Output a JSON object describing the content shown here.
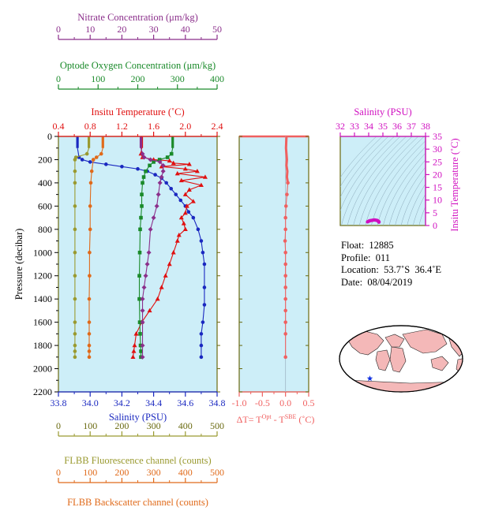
{
  "colors": {
    "nitrate": "#8b2f8b",
    "oxygen": "#1a8a2a",
    "temperature": "#e01010",
    "salinity": "#1a28c0",
    "fluorescence": "#9a9a30",
    "backscatter": "#e06a1a",
    "deltaT": "#f06060",
    "ts_axis": "#d010c0",
    "panel_bg": "#cdeef8",
    "axis_olive": "#6a6a10"
  },
  "info": {
    "float": "Float:  12885",
    "profile": "Profile:  011",
    "location": "Location:  53.7˚S  36.4˚E",
    "date": "Date:  08/04/2019"
  },
  "chart_data": [
    {
      "type": "line",
      "panel": "main",
      "ylabel": "Pressure (decibar)",
      "ylim": [
        2200,
        0
      ],
      "yticks": [
        "0",
        "200",
        "400",
        "600",
        "800",
        "1000",
        "1200",
        "1400",
        "1600",
        "1800",
        "2000",
        "2200"
      ],
      "axes": {
        "nitrate": {
          "label": "Nitrate Concentration (μm/kg)",
          "lim": [
            0,
            50
          ],
          "ticks": [
            "0",
            "10",
            "20",
            "30",
            "40",
            "50"
          ]
        },
        "oxygen": {
          "label": "Optode Oxygen Concentration (μm/kg)",
          "lim": [
            0,
            400
          ],
          "ticks": [
            "0",
            "100",
            "200",
            "300",
            "400"
          ]
        },
        "temperature": {
          "label": "Insitu Temperature (˚C)",
          "lim": [
            0.4,
            2.4
          ],
          "ticks": [
            "0.4",
            "0.8",
            "1.2",
            "1.6",
            "2.0",
            "2.4"
          ]
        },
        "salinity": {
          "label": "Salinity (PSU)",
          "lim": [
            33.8,
            34.8
          ],
          "ticks": [
            "33.8",
            "34.0",
            "34.2",
            "34.4",
            "34.6",
            "34.8"
          ]
        },
        "fluorescence": {
          "label": "FLBB Fluorescence channel (counts)",
          "lim": [
            0,
            500
          ],
          "ticks": [
            "0",
            "100",
            "200",
            "300",
            "400",
            "500"
          ]
        },
        "backscatter": {
          "label": "FLBB Backscatter channel (counts)",
          "lim": [
            0,
            500
          ],
          "ticks": [
            "0",
            "100",
            "200",
            "300",
            "400",
            "500"
          ]
        }
      },
      "series": [
        {
          "axis": "salinity",
          "color_key": "salinity",
          "marker": "circle",
          "x": [
            33.92,
            33.92,
            33.93,
            33.95,
            34.0,
            34.1,
            34.2,
            34.3,
            34.36,
            34.41,
            34.45,
            34.48,
            34.51,
            34.54,
            34.57,
            34.6,
            34.62,
            34.65,
            34.68,
            34.7,
            34.71,
            34.72,
            34.72,
            34.72,
            34.71,
            34.7,
            34.7,
            34.7
          ],
          "y": [
            5,
            100,
            180,
            200,
            220,
            240,
            260,
            280,
            300,
            330,
            360,
            400,
            450,
            500,
            550,
            600,
            650,
            700,
            800,
            900,
            1000,
            1100,
            1300,
            1450,
            1600,
            1700,
            1800,
            1900
          ]
        },
        {
          "axis": "temperature",
          "color_key": "temperature",
          "marker": "triangle",
          "x": [
            1.45,
            1.45,
            1.44,
            1.46,
            1.6,
            1.8,
            1.85,
            2.05,
            1.7,
            2.0,
            2.15,
            1.9,
            2.25,
            1.95,
            2.2,
            2.05,
            2.0,
            2.1,
            2.02,
            2.0,
            1.95,
            1.98,
            2.0,
            1.92,
            1.9,
            1.85,
            1.8,
            1.75,
            1.7,
            1.65,
            1.55,
            1.45,
            1.38,
            1.36,
            1.35,
            1.34
          ],
          "y": [
            5,
            100,
            150,
            180,
            200,
            210,
            230,
            240,
            260,
            280,
            300,
            320,
            350,
            380,
            420,
            460,
            500,
            560,
            600,
            660,
            700,
            750,
            800,
            850,
            900,
            1000,
            1100,
            1200,
            1300,
            1400,
            1500,
            1600,
            1700,
            1800,
            1850,
            1900
          ]
        },
        {
          "axis": "oxygen",
          "color_key": "oxygen",
          "marker": "square",
          "x": [
            288,
            288,
            285,
            275,
            255,
            240,
            230,
            220,
            215,
            212,
            210,
            210,
            208,
            206,
            205,
            204,
            204,
            205,
            206,
            207,
            208,
            208
          ],
          "y": [
            5,
            100,
            150,
            180,
            200,
            220,
            250,
            300,
            350,
            400,
            500,
            600,
            700,
            800,
            1000,
            1200,
            1400,
            1600,
            1700,
            1800,
            1850,
            1900
          ]
        },
        {
          "axis": "nitrate",
          "color_key": "nitrate",
          "marker": "diamond",
          "x": [
            26.0,
            26.0,
            26.5,
            27.0,
            29.0,
            32.0,
            33.0,
            33.0,
            32.5,
            32.0,
            31.5,
            31.0,
            30.0,
            29.0,
            28.5,
            28.0,
            27.5,
            27.0,
            26.5,
            26.5,
            26.5,
            26.5,
            26.5
          ],
          "y": [
            5,
            100,
            150,
            180,
            200,
            220,
            250,
            300,
            350,
            400,
            500,
            600,
            700,
            800,
            1000,
            1100,
            1200,
            1300,
            1400,
            1500,
            1600,
            1800,
            1900
          ]
        },
        {
          "axis": "fluorescence",
          "color_key": "fluorescence",
          "marker": "circle",
          "x": [
            96,
            96,
            90,
            55,
            52,
            52,
            52,
            52,
            52,
            52,
            52,
            52,
            52,
            52,
            52,
            52,
            52
          ],
          "y": [
            5,
            100,
            150,
            180,
            200,
            300,
            400,
            600,
            800,
            1000,
            1200,
            1400,
            1600,
            1700,
            1800,
            1850,
            1900
          ]
        },
        {
          "axis": "backscatter",
          "color_key": "backscatter",
          "marker": "circle",
          "x": [
            140,
            140,
            135,
            120,
            110,
            105,
            102,
            100,
            100,
            98,
            98,
            97,
            97,
            97,
            97,
            97,
            97
          ],
          "y": [
            5,
            100,
            150,
            180,
            200,
            300,
            400,
            600,
            800,
            1000,
            1200,
            1400,
            1600,
            1700,
            1800,
            1850,
            1900
          ]
        }
      ]
    },
    {
      "type": "line",
      "panel": "delta_t",
      "xlabel": "ΔT= T",
      "xlabel_sup1": "Opt",
      "xlabel_mid": " - T",
      "xlabel_sup2": "SBE",
      "xlabel_unit": " (˚C)",
      "xlim": [
        -1.0,
        0.5
      ],
      "xticks": [
        "-1.0",
        "-0.5",
        "0.0",
        "0.5"
      ],
      "ylim": [
        2200,
        0
      ],
      "series": [
        {
          "color_key": "deltaT",
          "marker": "circle",
          "x": [
            0.02,
            0.01,
            0.03,
            0.02,
            0.04,
            0.03,
            0.05,
            0.03,
            0.01,
            0.0,
            0.0,
            -0.01,
            0.0,
            0.0,
            0.0,
            0.0,
            0.0,
            0.0,
            0.0,
            0.0,
            0.0
          ],
          "y": [
            5,
            100,
            200,
            250,
            300,
            350,
            400,
            500,
            600,
            700,
            800,
            900,
            1000,
            1100,
            1200,
            1300,
            1400,
            1500,
            1600,
            1700,
            1900
          ]
        }
      ]
    },
    {
      "type": "scatter",
      "panel": "ts",
      "title": "Salinity (PSU)",
      "xlim": [
        32,
        38
      ],
      "xticks": [
        "32",
        "33",
        "34",
        "35",
        "36",
        "37",
        "38"
      ],
      "ylabel": "Insitu Temperature (˚C)",
      "ylim": [
        0,
        35
      ],
      "yticks": [
        "0",
        "5",
        "10",
        "15",
        "20",
        "25",
        "30",
        "35"
      ],
      "points": {
        "x": [
          33.92,
          34.0,
          34.1,
          34.2,
          34.3,
          34.4,
          34.5,
          34.6,
          34.65,
          34.7,
          34.72,
          34.72
        ],
        "y": [
          1.45,
          1.7,
          1.9,
          2.0,
          2.1,
          2.2,
          2.1,
          2.0,
          1.8,
          1.6,
          1.4,
          1.35
        ]
      }
    }
  ]
}
